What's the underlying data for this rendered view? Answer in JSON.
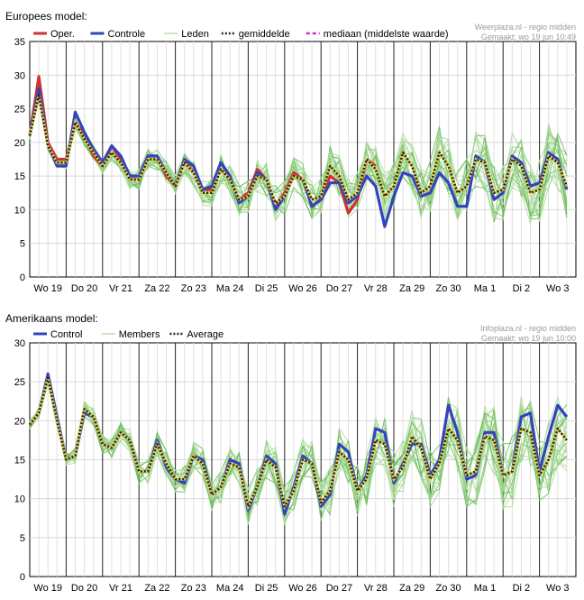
{
  "chart_data": [
    {
      "type": "line",
      "title": "Europees model:",
      "credit_line1": "Weerplaza.nl - regio midden",
      "credit_line2": "Gemaakt: wo 19 jun 10:49",
      "xlabel": "",
      "ylabel": "",
      "ylim": [
        0,
        35
      ],
      "yticks": [
        0,
        5,
        10,
        15,
        20,
        25,
        30,
        35
      ],
      "grid": true,
      "legend_position": "top",
      "day_labels": [
        "Wo 19",
        "Do 20",
        "Vr 21",
        "Za 22",
        "Zo 23",
        "Ma 24",
        "Di 25",
        "Wo 26",
        "Do 27",
        "Vr 28",
        "Za 29",
        "Zo 30",
        "Ma 1",
        "Di 2",
        "Wo 3"
      ],
      "legend": [
        {
          "label": "Oper.",
          "color": "#cc3333",
          "style": "solid"
        },
        {
          "label": "Controle",
          "color": "#3344bb",
          "style": "solid"
        },
        {
          "label": "Leden",
          "color": "#99cc88",
          "style": "solid"
        },
        {
          "label": "gemiddelde",
          "color": "#222222",
          "style": "dotted"
        },
        {
          "label": "mediaan (middelste waarde)",
          "color": "#cc33cc",
          "style": "dashed"
        }
      ],
      "series": [
        {
          "name": "Oper.",
          "color": "#cc3333",
          "values": [
            21,
            29.8,
            20,
            17.5,
            17.5,
            23,
            21,
            18,
            16.5,
            19.5,
            17.5,
            14.5,
            14.5,
            18,
            18,
            15,
            13.5,
            17.5,
            15.5,
            13,
            13,
            16,
            14.5,
            11.5,
            12.5,
            16,
            14.5,
            10.5,
            12.5,
            15.5,
            14.5,
            10.5,
            11.5,
            15,
            14,
            9.5,
            11.5,
            17.5,
            16.5
          ]
        },
        {
          "name": "Controle",
          "color": "#3344bb",
          "values": [
            21,
            28,
            19.5,
            16.5,
            16.5,
            24.5,
            21.5,
            19,
            17,
            19.5,
            18,
            15,
            15,
            18,
            18,
            15.5,
            13.5,
            17.5,
            16.5,
            13,
            13.5,
            17,
            15,
            11,
            12,
            15.5,
            14.5,
            10,
            12,
            15,
            14.5,
            10.5,
            11.5,
            14,
            14,
            11,
            12,
            15,
            13.5,
            7.5,
            12,
            15.5,
            15,
            12,
            12.5,
            15.5,
            14,
            10.5,
            10.5,
            18,
            17,
            11.5,
            12.5,
            18,
            17,
            13.5,
            14,
            18.5,
            17.5,
            13
          ]
        },
        {
          "name": "gemiddelde",
          "color": "#222222",
          "values": [
            21,
            27,
            19.5,
            17,
            17,
            23,
            20.5,
            18.5,
            16.5,
            18.5,
            17,
            14.5,
            14.5,
            17.5,
            17.5,
            15.5,
            13.5,
            17,
            15.5,
            12.5,
            12.5,
            16,
            14.5,
            11.5,
            12,
            15,
            14.5,
            11,
            12,
            15,
            14.5,
            11.5,
            12,
            16.5,
            15,
            11.5,
            12.5,
            17.5,
            16,
            12,
            13.5,
            18.5,
            16.5,
            12.5,
            13.5,
            18.5,
            16.5,
            12.5,
            13.5,
            17.5,
            17,
            12.5,
            13,
            17.5,
            16.5,
            12.5,
            13,
            18,
            17,
            13.5
          ]
        }
      ]
    },
    {
      "type": "line",
      "title": "Amerikaans model:",
      "credit_line1": "Infoplaza.nl - regio midden",
      "credit_line2": "Gemaakt: wo 19 jun 10:00",
      "xlabel": "",
      "ylabel": "",
      "ylim": [
        0,
        30
      ],
      "yticks": [
        0,
        5,
        10,
        15,
        20,
        25,
        30
      ],
      "grid": true,
      "legend_position": "top",
      "day_labels": [
        "Wo 19",
        "Do 20",
        "Vr 21",
        "Za 22",
        "Zo 23",
        "Ma 24",
        "Di 25",
        "Wo 26",
        "Do 27",
        "Vr 28",
        "Za 29",
        "Zo 30",
        "Ma 1",
        "Di 2",
        "Wo 3"
      ],
      "legend": [
        {
          "label": "Control",
          "color": "#3344bb",
          "style": "solid"
        },
        {
          "label": "Members",
          "color": "#99cc88",
          "style": "solid"
        },
        {
          "label": "Average",
          "color": "#222222",
          "style": "dotted"
        }
      ],
      "series": [
        {
          "name": "Control",
          "color": "#3344bb",
          "values": [
            19.5,
            21,
            26,
            20.5,
            15,
            15.5,
            21,
            20.5,
            17,
            16.5,
            18.5,
            17.5,
            13.5,
            13.5,
            17.5,
            14,
            12.5,
            12,
            15.5,
            15,
            10.5,
            11.5,
            15,
            14.5,
            8.5,
            11.5,
            15.5,
            14.5,
            8,
            11.5,
            15.5,
            14.5,
            9,
            10.5,
            17,
            16,
            11,
            13,
            19,
            18.5,
            12,
            14.5,
            17,
            17,
            13,
            15,
            22,
            18.5,
            12.5,
            13,
            18.5,
            18.5,
            13,
            13.5,
            20.5,
            21,
            13.5,
            18,
            22,
            20.5
          ]
        },
        {
          "name": "Average",
          "color": "#222222",
          "values": [
            19.5,
            21,
            25.5,
            20,
            15,
            15.5,
            21.5,
            20.5,
            17,
            16.5,
            18.5,
            17.5,
            13.5,
            13.5,
            17,
            14.5,
            12.5,
            12.5,
            15.5,
            14.5,
            10.5,
            11.5,
            14.5,
            14,
            9,
            11.5,
            15,
            14,
            9,
            11,
            15,
            14.5,
            9.5,
            11,
            16,
            15,
            11,
            12.5,
            17.5,
            17,
            12.5,
            14,
            18,
            16.5,
            12.5,
            14.5,
            19,
            17.5,
            13,
            13.5,
            18,
            17.5,
            13,
            13.5,
            19,
            18.5,
            13,
            15,
            19,
            17.5
          ]
        }
      ]
    }
  ]
}
